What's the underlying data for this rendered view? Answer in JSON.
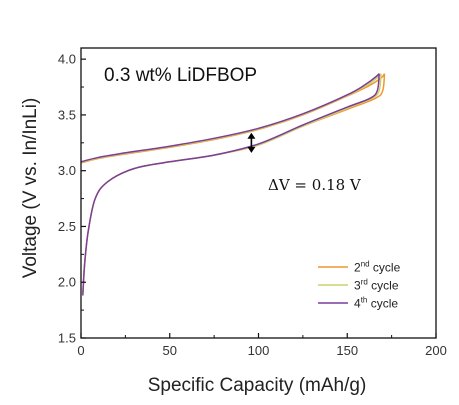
{
  "chart_data": {
    "type": "line",
    "title": "0.3 wt% LiDFBOP",
    "xlabel": "Specific Capacity (mAh/g)",
    "ylabel": "Voltage (V vs. In/InLi)",
    "xlim": [
      0,
      200
    ],
    "ylim": [
      1.5,
      4.1
    ],
    "xticks": [
      "0",
      "50",
      "100",
      "150",
      "200"
    ],
    "yticks": [
      "1.5",
      "2.0",
      "2.5",
      "3.0",
      "3.5",
      "4.0"
    ],
    "annotation": {
      "label": "ΔV = 0.18 V",
      "x": 96,
      "y_low": 3.16,
      "y_high": 3.34
    },
    "legend_position": "bottom-right",
    "series": [
      {
        "name": "2nd cycle",
        "legend_main": "2",
        "legend_sup": "nd",
        "legend_rest": " cycle",
        "color": "#f0962e",
        "charge": [
          [
            0,
            3.07
          ],
          [
            10,
            3.11
          ],
          [
            25,
            3.15
          ],
          [
            50,
            3.21
          ],
          [
            75,
            3.28
          ],
          [
            100,
            3.37
          ],
          [
            125,
            3.5
          ],
          [
            150,
            3.67
          ],
          [
            162,
            3.76
          ],
          [
            169,
            3.83
          ],
          [
            171,
            3.87
          ]
        ],
        "discharge": [
          [
            171,
            3.87
          ],
          [
            170,
            3.72
          ],
          [
            166,
            3.65
          ],
          [
            150,
            3.55
          ],
          [
            125,
            3.4
          ],
          [
            100,
            3.23
          ],
          [
            75,
            3.14
          ],
          [
            50,
            3.08
          ],
          [
            30,
            3.02
          ],
          [
            15,
            2.9
          ],
          [
            8,
            2.75
          ],
          [
            4,
            2.45
          ],
          [
            2,
            2.15
          ],
          [
            1,
            1.9
          ]
        ]
      },
      {
        "name": "3rd cycle",
        "legend_main": "3",
        "legend_sup": "rd",
        "legend_rest": " cycle",
        "color": "#cfd06a",
        "charge": [
          [
            0,
            3.075
          ],
          [
            10,
            3.115
          ],
          [
            25,
            3.155
          ],
          [
            50,
            3.215
          ],
          [
            75,
            3.285
          ],
          [
            100,
            3.375
          ],
          [
            125,
            3.505
          ],
          [
            150,
            3.675
          ],
          [
            161,
            3.765
          ],
          [
            167,
            3.835
          ],
          [
            169,
            3.87
          ]
        ],
        "discharge": [
          [
            169,
            3.87
          ],
          [
            168,
            3.72
          ],
          [
            164,
            3.65
          ],
          [
            150,
            3.56
          ],
          [
            125,
            3.4
          ],
          [
            100,
            3.23
          ],
          [
            75,
            3.14
          ],
          [
            50,
            3.08
          ],
          [
            30,
            3.02
          ],
          [
            15,
            2.9
          ],
          [
            8,
            2.75
          ],
          [
            4,
            2.45
          ],
          [
            2,
            2.15
          ],
          [
            1,
            1.9
          ]
        ]
      },
      {
        "name": "4th cycle",
        "legend_main": "4",
        "legend_sup": "th",
        "legend_rest": " cycle",
        "color": "#7a3f9a",
        "charge": [
          [
            0,
            3.08
          ],
          [
            10,
            3.12
          ],
          [
            25,
            3.16
          ],
          [
            50,
            3.22
          ],
          [
            75,
            3.29
          ],
          [
            100,
            3.38
          ],
          [
            125,
            3.51
          ],
          [
            150,
            3.68
          ],
          [
            160,
            3.77
          ],
          [
            166,
            3.84
          ],
          [
            168,
            3.87
          ]
        ],
        "discharge": [
          [
            168,
            3.87
          ],
          [
            167,
            3.72
          ],
          [
            163,
            3.65
          ],
          [
            150,
            3.57
          ],
          [
            125,
            3.41
          ],
          [
            100,
            3.24
          ],
          [
            75,
            3.14
          ],
          [
            50,
            3.08
          ],
          [
            30,
            3.02
          ],
          [
            15,
            2.9
          ],
          [
            8,
            2.75
          ],
          [
            4,
            2.45
          ],
          [
            2,
            2.15
          ],
          [
            1,
            1.88
          ]
        ]
      }
    ]
  }
}
